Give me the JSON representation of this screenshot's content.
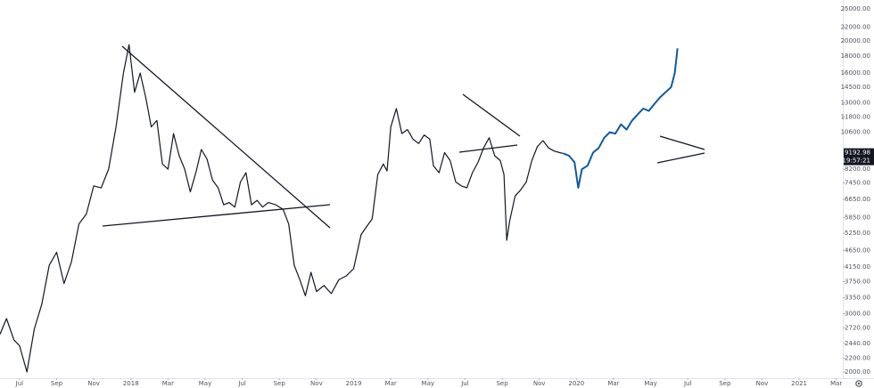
{
  "chart_data": {
    "type": "line",
    "log_scale": true,
    "grid": false,
    "xlim": [
      4.95,
      50.35
    ],
    "ylim": [
      1915,
      26600
    ],
    "xticks": [
      {
        "value": 6,
        "label": "Jul"
      },
      {
        "value": 8,
        "label": "Sep"
      },
      {
        "value": 10,
        "label": "Nov"
      },
      {
        "value": 12,
        "label": "2018"
      },
      {
        "value": 14,
        "label": "Mar"
      },
      {
        "value": 16,
        "label": "May"
      },
      {
        "value": 18,
        "label": "Jul"
      },
      {
        "value": 20,
        "label": "Sep"
      },
      {
        "value": 22,
        "label": "Nov"
      },
      {
        "value": 24,
        "label": "2019"
      },
      {
        "value": 26,
        "label": "Mar"
      },
      {
        "value": 28,
        "label": "May"
      },
      {
        "value": 30,
        "label": "Jul"
      },
      {
        "value": 32,
        "label": "Sep"
      },
      {
        "value": 34,
        "label": "Nov"
      },
      {
        "value": 36,
        "label": "2020"
      },
      {
        "value": 38,
        "label": "Mar"
      },
      {
        "value": 40,
        "label": "May"
      },
      {
        "value": 42,
        "label": "Jul"
      },
      {
        "value": 44,
        "label": "Sep"
      },
      {
        "value": 46,
        "label": "Nov"
      },
      {
        "value": 48,
        "label": "2021"
      },
      {
        "value": 50,
        "label": "Mar"
      }
    ],
    "yticks": [
      {
        "value": 25000,
        "label": "25000.00"
      },
      {
        "value": 22000,
        "label": "22000.00"
      },
      {
        "value": 20000,
        "label": "20000.00"
      },
      {
        "value": 18000,
        "label": "18000.00"
      },
      {
        "value": 16000,
        "label": "16000.00"
      },
      {
        "value": 14500,
        "label": "14500.00"
      },
      {
        "value": 13000,
        "label": "13000.00"
      },
      {
        "value": 11800,
        "label": "11800.00"
      },
      {
        "value": 10600,
        "label": "10600.00"
      },
      {
        "value": 8200,
        "label": "8200.00"
      },
      {
        "value": 7450,
        "label": "7450.00"
      },
      {
        "value": 6650,
        "label": "6650.00"
      },
      {
        "value": 5850,
        "label": "5850.00"
      },
      {
        "value": 5250,
        "label": "5250.00"
      },
      {
        "value": 4650,
        "label": "4650.00"
      },
      {
        "value": 4150,
        "label": "4150.00"
      },
      {
        "value": 3750,
        "label": "3750.00"
      },
      {
        "value": 3350,
        "label": "3350.00"
      },
      {
        "value": 3000,
        "label": "3000.00"
      },
      {
        "value": 2720,
        "label": "2720.00"
      },
      {
        "value": 2440,
        "label": "2440.00"
      },
      {
        "value": 2200,
        "label": "2200.00"
      },
      {
        "value": 2000,
        "label": "2000.00"
      }
    ],
    "last_price": 9192.98,
    "countdown": "19:57:21",
    "series": [
      {
        "color": "#131722",
        "x": [
          4.95,
          5.3,
          5.7,
          6.0,
          6.4,
          6.8,
          7.2,
          7.6,
          8.0,
          8.4,
          8.8,
          9.2,
          9.6,
          10.0,
          10.4,
          10.8,
          11.2,
          11.6,
          11.9,
          12.2,
          12.5,
          12.8,
          13.1,
          13.4,
          13.7,
          14.0,
          14.3,
          14.6,
          14.9,
          15.2,
          15.5,
          15.8,
          16.1,
          16.4,
          16.7,
          17.0,
          17.3,
          17.6,
          17.9,
          18.2,
          18.5,
          18.8,
          19.1,
          19.4,
          19.8,
          20.2,
          20.5,
          20.8,
          21.1,
          21.4,
          21.7,
          22.0,
          22.4,
          22.8,
          23.2,
          23.6,
          24.0,
          24.4,
          24.7,
          25.0,
          25.3,
          25.6,
          25.8,
          26.0,
          26.3,
          26.6,
          26.9,
          27.2,
          27.5,
          27.8,
          28.1,
          28.3,
          28.6,
          28.9,
          29.2,
          29.5,
          29.8,
          30.1,
          30.4,
          30.7,
          31.0,
          31.3,
          31.6,
          31.9,
          32.1,
          32.25,
          32.4,
          32.7,
          33.0,
          33.3,
          33.6,
          33.9,
          34.2,
          34.5,
          34.8,
          35.1,
          35.3
        ],
        "values": [
          2600,
          2900,
          2500,
          2400,
          2000,
          2700,
          3200,
          4200,
          4600,
          3700,
          4300,
          5600,
          6000,
          7300,
          7200,
          8200,
          11000,
          16000,
          19500,
          14000,
          16000,
          13500,
          11000,
          11500,
          8500,
          8200,
          10500,
          9000,
          8200,
          7000,
          8000,
          9400,
          8800,
          7600,
          7200,
          6400,
          6500,
          6300,
          7500,
          8000,
          6400,
          6600,
          6300,
          6500,
          6400,
          6200,
          5600,
          4200,
          3800,
          3400,
          4000,
          3500,
          3650,
          3450,
          3800,
          3900,
          4100,
          5200,
          5500,
          5800,
          7900,
          8500,
          8100,
          11000,
          12500,
          10500,
          10800,
          10100,
          9800,
          10400,
          10100,
          8400,
          8000,
          9200,
          8700,
          7500,
          7300,
          7200,
          8000,
          8600,
          9500,
          10200,
          9000,
          8700,
          7900,
          5000,
          5700,
          6800,
          7100,
          7500,
          8700,
          9600,
          10000,
          9500,
          9300,
          9200,
          9150
        ]
      },
      {
        "color": "#0f5aa0",
        "x": [
          35.3,
          35.6,
          35.9,
          36.1,
          36.3,
          36.6,
          36.9,
          37.2,
          37.5,
          37.8,
          38.1,
          38.4,
          38.7,
          39.0,
          39.3,
          39.6,
          39.9,
          40.2,
          40.5,
          40.8,
          41.1,
          41.3,
          41.45
        ],
        "values": [
          9150,
          9000,
          8600,
          7200,
          8200,
          8400,
          9200,
          9500,
          10200,
          10600,
          10500,
          11200,
          10800,
          11500,
          12000,
          12500,
          12300,
          12900,
          13500,
          14000,
          14500,
          16000,
          19000
        ]
      }
    ]
  }
}
